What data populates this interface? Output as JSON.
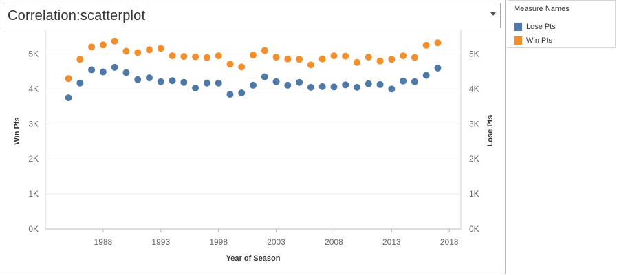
{
  "header": {
    "title": "Correlation:scatterplot"
  },
  "legend": {
    "title": "Measure Names",
    "items": [
      {
        "label": "Lose Pts",
        "color": "#4e79a7"
      },
      {
        "label": "Win Pts",
        "color": "#f28e2b"
      }
    ]
  },
  "chart_data": {
    "type": "scatter",
    "xlabel": "Year of Season",
    "ylabel_left": "Win Pts",
    "ylabel_right": "Lose Pts",
    "x_ticks": [
      "1988",
      "1993",
      "1998",
      "2003",
      "2008",
      "2013",
      "2018"
    ],
    "y_ticks": [
      "0K",
      "1K",
      "2K",
      "3K",
      "4K",
      "5K"
    ],
    "xlim": [
      1983,
      2019
    ],
    "ylim": [
      0,
      5600
    ],
    "grid": "horizontal",
    "legend_placement": "right",
    "x": [
      1985,
      1986,
      1987,
      1988,
      1989,
      1990,
      1991,
      1992,
      1993,
      1994,
      1995,
      1996,
      1997,
      1998,
      1999,
      2000,
      2001,
      2002,
      2003,
      2004,
      2005,
      2006,
      2007,
      2008,
      2009,
      2010,
      2011,
      2012,
      2013,
      2014,
      2015,
      2016,
      2017
    ],
    "series": [
      {
        "name": "Win Pts",
        "color": "#f28e2b",
        "values": [
          4300,
          4850,
          5200,
          5260,
          5370,
          5080,
          5040,
          5120,
          5160,
          4950,
          4930,
          4920,
          4900,
          4950,
          4710,
          4630,
          4970,
          5100,
          4910,
          4860,
          4850,
          4690,
          4860,
          4950,
          4940,
          4760,
          4910,
          4800,
          4850,
          4950,
          4900,
          5250,
          5320
        ]
      },
      {
        "name": "Lose Pts",
        "color": "#4e79a7",
        "values": [
          3750,
          4170,
          4550,
          4490,
          4620,
          4470,
          4270,
          4320,
          4210,
          4240,
          4190,
          4030,
          4170,
          4170,
          3850,
          3890,
          4110,
          4350,
          4210,
          4110,
          4190,
          4050,
          4070,
          4060,
          4120,
          4050,
          4150,
          4130,
          4000,
          4230,
          4210,
          4390,
          4600
        ]
      }
    ]
  }
}
